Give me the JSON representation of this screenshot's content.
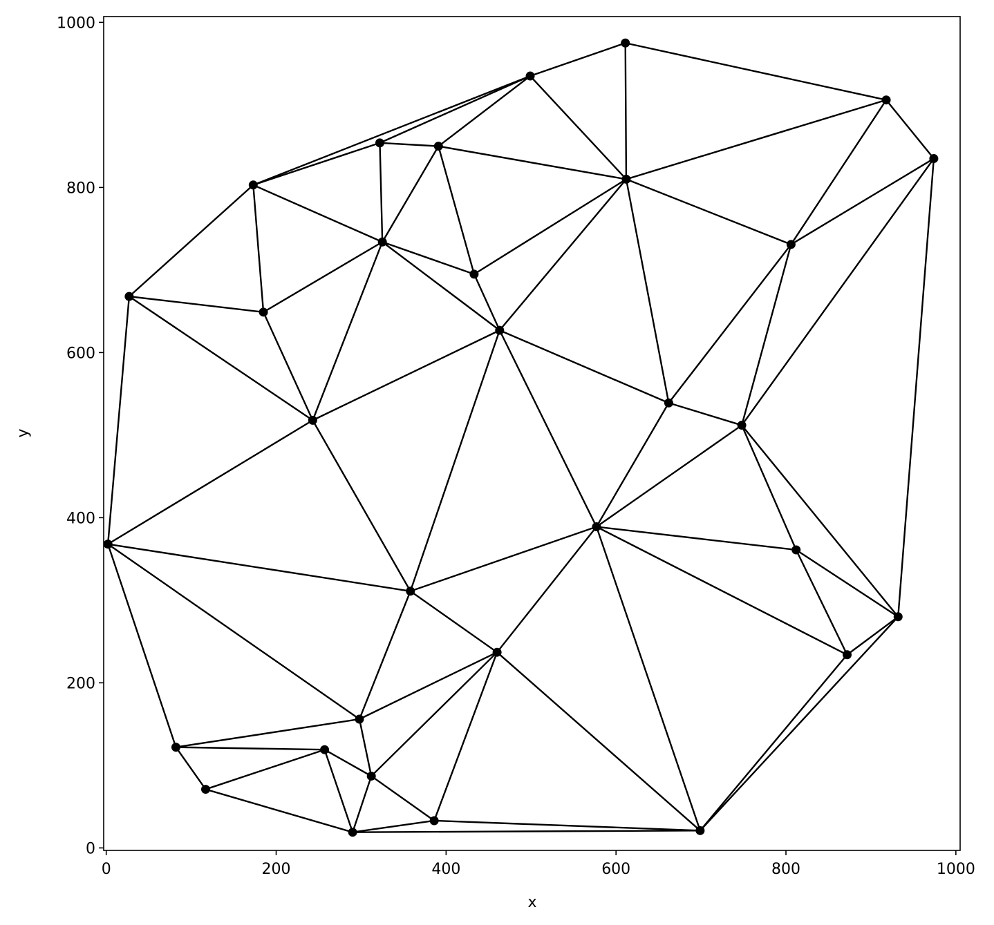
{
  "chart_data": {
    "type": "scatter",
    "title": "",
    "xlabel": "x",
    "ylabel": "y",
    "xlim": [
      -3,
      1005
    ],
    "ylim": [
      -3,
      1007
    ],
    "xticks": [
      0,
      200,
      400,
      600,
      800,
      1000
    ],
    "yticks": [
      0,
      200,
      400,
      600,
      800,
      1000
    ],
    "grid": false,
    "points": [
      [
        611,
        975
      ],
      [
        499,
        935
      ],
      [
        918,
        906
      ],
      [
        974,
        835
      ],
      [
        322,
        854
      ],
      [
        391,
        850
      ],
      [
        612,
        810
      ],
      [
        173,
        803
      ],
      [
        325,
        734
      ],
      [
        806,
        731
      ],
      [
        433,
        695
      ],
      [
        27,
        668
      ],
      [
        185,
        649
      ],
      [
        463,
        627
      ],
      [
        662,
        539
      ],
      [
        243,
        518
      ],
      [
        748,
        512
      ],
      [
        2,
        368
      ],
      [
        577,
        389
      ],
      [
        812,
        361
      ],
      [
        358,
        311
      ],
      [
        932,
        280
      ],
      [
        872,
        234
      ],
      [
        460,
        237
      ],
      [
        298,
        156
      ],
      [
        257,
        119
      ],
      [
        82,
        122
      ],
      [
        117,
        71
      ],
      [
        312,
        87
      ],
      [
        386,
        33
      ],
      [
        290,
        19
      ],
      [
        699,
        21
      ]
    ],
    "edges": [
      [
        0,
        1
      ],
      [
        0,
        6
      ],
      [
        0,
        2
      ],
      [
        2,
        3
      ],
      [
        2,
        6
      ],
      [
        2,
        9
      ],
      [
        3,
        9
      ],
      [
        3,
        16
      ],
      [
        3,
        21
      ],
      [
        1,
        7
      ],
      [
        1,
        4
      ],
      [
        1,
        5
      ],
      [
        1,
        6
      ],
      [
        4,
        7
      ],
      [
        4,
        5
      ],
      [
        4,
        8
      ],
      [
        5,
        8
      ],
      [
        5,
        6
      ],
      [
        5,
        10
      ],
      [
        7,
        8
      ],
      [
        7,
        12
      ],
      [
        7,
        11
      ],
      [
        6,
        10
      ],
      [
        6,
        13
      ],
      [
        6,
        9
      ],
      [
        6,
        14
      ],
      [
        8,
        12
      ],
      [
        8,
        10
      ],
      [
        8,
        13
      ],
      [
        8,
        15
      ],
      [
        10,
        13
      ],
      [
        11,
        12
      ],
      [
        11,
        15
      ],
      [
        11,
        17
      ],
      [
        12,
        15
      ],
      [
        13,
        15
      ],
      [
        13,
        14
      ],
      [
        13,
        20
      ],
      [
        13,
        18
      ],
      [
        9,
        14
      ],
      [
        9,
        16
      ],
      [
        14,
        16
      ],
      [
        14,
        18
      ],
      [
        15,
        17
      ],
      [
        15,
        20
      ],
      [
        16,
        18
      ],
      [
        16,
        19
      ],
      [
        16,
        21
      ],
      [
        17,
        20
      ],
      [
        17,
        24
      ],
      [
        17,
        26
      ],
      [
        18,
        20
      ],
      [
        18,
        23
      ],
      [
        18,
        19
      ],
      [
        18,
        22
      ],
      [
        18,
        31
      ],
      [
        19,
        21
      ],
      [
        19,
        22
      ],
      [
        21,
        22
      ],
      [
        21,
        31
      ],
      [
        22,
        31
      ],
      [
        20,
        23
      ],
      [
        20,
        24
      ],
      [
        23,
        24
      ],
      [
        23,
        28
      ],
      [
        23,
        29
      ],
      [
        23,
        31
      ],
      [
        24,
        28
      ],
      [
        24,
        26
      ],
      [
        25,
        26
      ],
      [
        25,
        27
      ],
      [
        25,
        28
      ],
      [
        25,
        30
      ],
      [
        26,
        27
      ],
      [
        27,
        30
      ],
      [
        28,
        29
      ],
      [
        28,
        30
      ],
      [
        29,
        30
      ],
      [
        29,
        31
      ],
      [
        30,
        31
      ]
    ]
  }
}
